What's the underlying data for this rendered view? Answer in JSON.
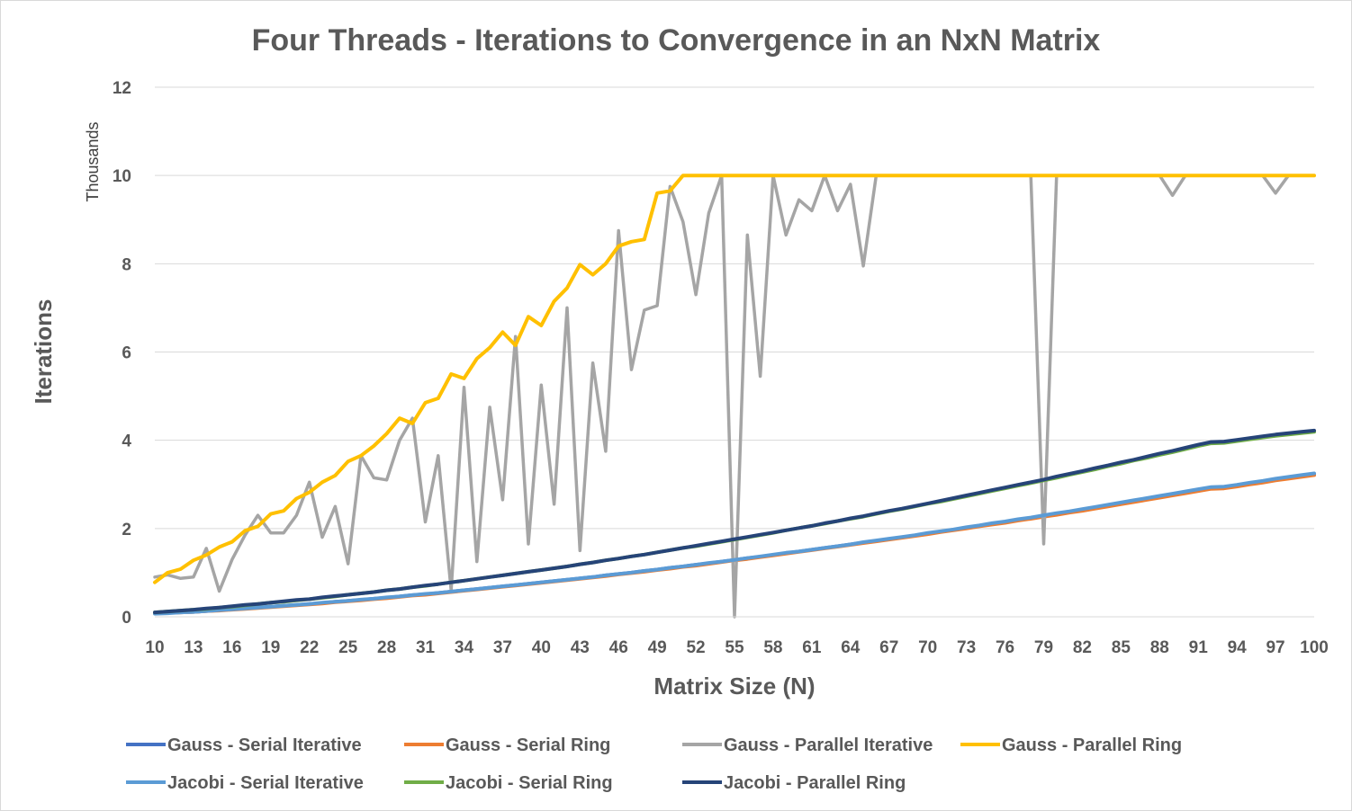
{
  "chart_data": {
    "type": "line",
    "title": "Four Threads - Iterations to Convergence in an NxN Matrix",
    "xlabel": "Matrix Size (N)",
    "ylabel": "Iterations",
    "y_display_units": "Thousands",
    "xlim": [
      10,
      100
    ],
    "ylim": [
      0,
      12000
    ],
    "yticks": [
      0,
      2000,
      4000,
      6000,
      8000,
      10000,
      12000
    ],
    "ytick_labels": [
      "0",
      "2",
      "4",
      "6",
      "8",
      "10",
      "12"
    ],
    "xticks": [
      10,
      13,
      16,
      19,
      22,
      25,
      28,
      31,
      34,
      37,
      40,
      43,
      46,
      49,
      52,
      55,
      58,
      61,
      64,
      67,
      70,
      73,
      76,
      79,
      82,
      85,
      88,
      91,
      94,
      97,
      100
    ],
    "grid": "horizontal",
    "legend": "bottom",
    "x": [
      10,
      11,
      12,
      13,
      14,
      15,
      16,
      17,
      18,
      19,
      20,
      21,
      22,
      23,
      24,
      25,
      26,
      27,
      28,
      29,
      30,
      31,
      32,
      33,
      34,
      35,
      36,
      37,
      38,
      39,
      40,
      41,
      42,
      43,
      44,
      45,
      46,
      47,
      48,
      49,
      50,
      51,
      52,
      53,
      54,
      55,
      56,
      57,
      58,
      59,
      60,
      61,
      62,
      63,
      64,
      65,
      66,
      67,
      68,
      69,
      70,
      71,
      72,
      73,
      74,
      75,
      76,
      77,
      78,
      79,
      80,
      81,
      82,
      83,
      84,
      85,
      86,
      87,
      88,
      89,
      90,
      91,
      92,
      93,
      94,
      95,
      96,
      97,
      98,
      99,
      100
    ],
    "series": [
      {
        "name": "Gauss - Serial Iterative",
        "color": "#4472C4",
        "values": [
          80,
          90,
          100,
          110,
          130,
          150,
          170,
          190,
          210,
          230,
          250,
          270,
          290,
          310,
          340,
          360,
          380,
          410,
          430,
          460,
          490,
          510,
          540,
          570,
          600,
          630,
          660,
          690,
          720,
          750,
          780,
          810,
          840,
          870,
          900,
          940,
          970,
          1000,
          1040,
          1070,
          1110,
          1140,
          1180,
          1210,
          1250,
          1290,
          1330,
          1360,
          1400,
          1440,
          1480,
          1520,
          1560,
          1600,
          1640,
          1680,
          1720,
          1760,
          1800,
          1840,
          1890,
          1930,
          1970,
          2020,
          2060,
          2110,
          2150,
          2200,
          2240,
          2290,
          2340,
          2380,
          2430,
          2480,
          2530,
          2580,
          2630,
          2680,
          2730,
          2780,
          2830,
          2880,
          2930,
          2940,
          2980,
          3030,
          3070,
          3120,
          3160,
          3200,
          3240
        ]
      },
      {
        "name": "Gauss - Serial Ring",
        "color": "#ED7D31",
        "values": [
          80,
          90,
          100,
          110,
          130,
          140,
          160,
          180,
          200,
          220,
          240,
          260,
          280,
          300,
          330,
          350,
          370,
          400,
          420,
          450,
          480,
          500,
          530,
          560,
          590,
          620,
          650,
          680,
          710,
          740,
          770,
          800,
          830,
          860,
          890,
          920,
          960,
          990,
          1020,
          1060,
          1090,
          1130,
          1160,
          1200,
          1240,
          1280,
          1310,
          1350,
          1390,
          1430,
          1470,
          1510,
          1550,
          1590,
          1630,
          1670,
          1710,
          1750,
          1790,
          1830,
          1870,
          1920,
          1960,
          2000,
          2050,
          2090,
          2130,
          2180,
          2220,
          2270,
          2310,
          2360,
          2400,
          2450,
          2500,
          2550,
          2600,
          2650,
          2700,
          2750,
          2800,
          2850,
          2900,
          2910,
          2950,
          3000,
          3040,
          3090,
          3130,
          3170,
          3210
        ]
      },
      {
        "name": "Gauss - Parallel Iterative",
        "color": "#A5A5A5",
        "values": [
          900,
          950,
          870,
          900,
          1550,
          580,
          1300,
          1850,
          2300,
          1900,
          1900,
          2300,
          3050,
          1800,
          2500,
          1200,
          3650,
          3150,
          3100,
          4000,
          4500,
          2150,
          3650,
          600,
          5200,
          1250,
          4750,
          2650,
          6350,
          1650,
          5250,
          2550,
          7000,
          1500,
          5750,
          3750,
          8750,
          5600,
          6950,
          7050,
          9750,
          8950,
          7300,
          9150,
          10000,
          0,
          8650,
          5450,
          10000,
          8650,
          9450,
          9200,
          10000,
          9200,
          9800,
          7950,
          10000,
          10000,
          10000,
          10000,
          10000,
          10000,
          10000,
          10000,
          10000,
          10000,
          10000,
          10000,
          10000,
          1650,
          10000,
          10000,
          10000,
          10000,
          10000,
          10000,
          10000,
          10000,
          10000,
          9550,
          10000,
          10000,
          10000,
          10000,
          10000,
          10000,
          10000,
          9600,
          10000,
          10000,
          10000
        ]
      },
      {
        "name": "Gauss - Parallel Ring",
        "color": "#FFC000",
        "values": [
          780,
          1000,
          1080,
          1280,
          1400,
          1580,
          1700,
          1950,
          2050,
          2330,
          2400,
          2680,
          2820,
          3050,
          3200,
          3520,
          3650,
          3870,
          4150,
          4500,
          4380,
          4850,
          4950,
          5500,
          5400,
          5850,
          6100,
          6450,
          6150,
          6800,
          6600,
          7150,
          7450,
          7980,
          7750,
          8000,
          8400,
          8500,
          8550,
          9600,
          9650,
          10000,
          10000,
          10000,
          10000,
          10000,
          10000,
          10000,
          10000,
          10000,
          10000,
          10000,
          10000,
          10000,
          10000,
          10000,
          10000,
          10000,
          10000,
          10000,
          10000,
          10000,
          10000,
          10000,
          10000,
          10000,
          10000,
          10000,
          10000,
          10000,
          10000,
          10000,
          10000,
          10000,
          10000,
          10000,
          10000,
          10000,
          10000,
          10000,
          10000,
          10000,
          10000,
          10000,
          10000,
          10000,
          10000,
          10000,
          10000,
          10000,
          10000
        ]
      },
      {
        "name": "Jacobi - Serial Iterative",
        "color": "#5B9BD5",
        "values": [
          70,
          80,
          100,
          110,
          130,
          150,
          170,
          190,
          210,
          230,
          250,
          270,
          290,
          320,
          340,
          360,
          390,
          410,
          440,
          460,
          490,
          520,
          540,
          570,
          600,
          630,
          660,
          690,
          720,
          750,
          780,
          810,
          840,
          870,
          900,
          940,
          970,
          1000,
          1040,
          1070,
          1110,
          1140,
          1180,
          1220,
          1250,
          1290,
          1330,
          1370,
          1410,
          1450,
          1480,
          1520,
          1560,
          1600,
          1640,
          1690,
          1730,
          1770,
          1810,
          1850,
          1900,
          1940,
          1980,
          2030,
          2070,
          2120,
          2160,
          2210,
          2250,
          2300,
          2350,
          2390,
          2440,
          2490,
          2540,
          2590,
          2640,
          2690,
          2740,
          2790,
          2840,
          2890,
          2940,
          2950,
          2990,
          3040,
          3080,
          3130,
          3170,
          3210,
          3250
        ]
      },
      {
        "name": "Jacobi - Serial Ring",
        "color": "#70AD47",
        "values": [
          100,
          120,
          140,
          160,
          180,
          210,
          230,
          260,
          290,
          320,
          340,
          370,
          400,
          430,
          460,
          500,
          530,
          560,
          600,
          630,
          670,
          700,
          740,
          780,
          820,
          860,
          900,
          940,
          980,
          1020,
          1060,
          1100,
          1140,
          1190,
          1230,
          1280,
          1320,
          1370,
          1410,
          1460,
          1510,
          1560,
          1600,
          1650,
          1700,
          1750,
          1800,
          1850,
          1900,
          1960,
          2010,
          2060,
          2110,
          2170,
          2220,
          2270,
          2330,
          2390,
          2440,
          2500,
          2560,
          2610,
          2670,
          2730,
          2790,
          2850,
          2910,
          2970,
          3030,
          3090,
          3150,
          3220,
          3280,
          3340,
          3410,
          3470,
          3540,
          3600,
          3670,
          3730,
          3800,
          3870,
          3930,
          3940,
          3980,
          4020,
          4060,
          4100,
          4130,
          4160,
          4190
        ]
      },
      {
        "name": "Jacobi - Parallel Ring",
        "color": "#264478",
        "values": [
          100,
          120,
          140,
          160,
          190,
          210,
          240,
          270,
          290,
          320,
          350,
          380,
          400,
          440,
          470,
          500,
          530,
          560,
          600,
          630,
          670,
          710,
          740,
          780,
          820,
          860,
          900,
          940,
          980,
          1020,
          1060,
          1100,
          1140,
          1190,
          1230,
          1280,
          1320,
          1370,
          1410,
          1460,
          1510,
          1560,
          1610,
          1660,
          1710,
          1760,
          1810,
          1860,
          1910,
          1960,
          2010,
          2060,
          2120,
          2170,
          2230,
          2280,
          2340,
          2400,
          2450,
          2510,
          2570,
          2630,
          2690,
          2750,
          2810,
          2870,
          2930,
          2990,
          3050,
          3110,
          3180,
          3240,
          3300,
          3370,
          3430,
          3500,
          3560,
          3630,
          3700,
          3760,
          3830,
          3900,
          3960,
          3970,
          4010,
          4050,
          4090,
          4130,
          4160,
          4190,
          4220
        ]
      }
    ]
  }
}
